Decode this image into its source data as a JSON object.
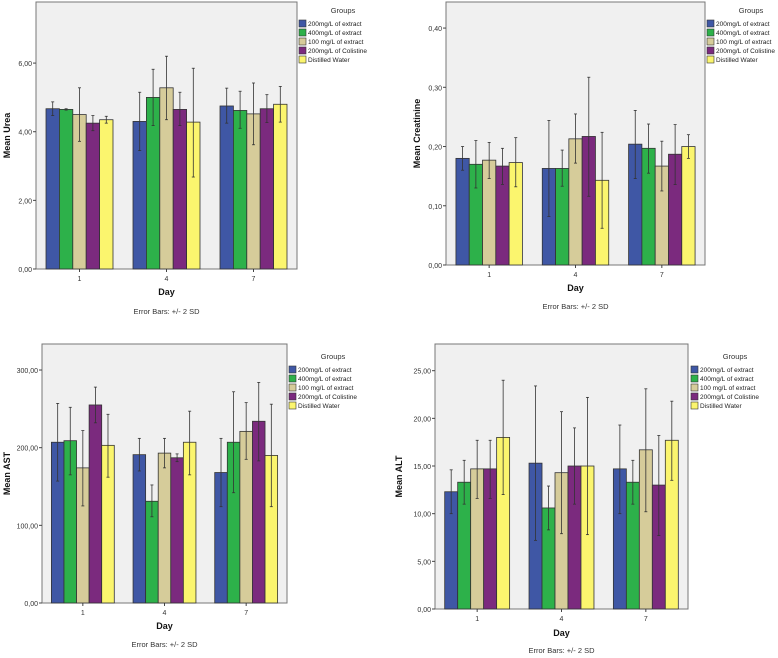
{
  "chart_data": [
    {
      "type": "bar",
      "title": "",
      "xlabel": "Day",
      "ylabel": "Mean Urea",
      "footnote": "Error Bars: +/- 2 SD",
      "legend_title": "Groups",
      "legend_position": "right",
      "categories": [
        "1",
        "4",
        "7"
      ],
      "ylim": [
        0,
        7.78
      ],
      "yticks": [
        0,
        2,
        4,
        6
      ],
      "ytick_labels": [
        "0,00",
        "2,00",
        "4,00",
        "6,00"
      ],
      "series": [
        {
          "name": "200mg/L of extract",
          "color": "#3f57a5",
          "values": [
            4.67,
            4.3,
            4.75
          ],
          "err_low": [
            4.47,
            3.45,
            4.25
          ],
          "err_high": [
            4.87,
            5.15,
            5.27
          ]
        },
        {
          "name": "400mg/L of extract",
          "color": "#2db14a",
          "values": [
            4.65,
            5.0,
            4.62
          ],
          "err_low": [
            4.63,
            4.18,
            4.1
          ],
          "err_high": [
            4.67,
            5.82,
            5.18
          ]
        },
        {
          "name": "100 mg/L of extract",
          "color": "#d6cc9a",
          "values": [
            4.5,
            5.28,
            4.52
          ],
          "err_low": [
            3.72,
            4.35,
            3.62
          ],
          "err_high": [
            5.28,
            6.2,
            5.42
          ]
        },
        {
          "name": "200mg/L of Colistine",
          "color": "#7b2a7e",
          "values": [
            4.25,
            4.65,
            4.67
          ],
          "err_low": [
            4.03,
            4.18,
            4.27
          ],
          "err_high": [
            4.47,
            5.15,
            5.08
          ]
        },
        {
          "name": "Distilled Water",
          "color": "#fbf56e",
          "values": [
            4.35,
            4.28,
            4.8
          ],
          "err_low": [
            4.25,
            2.68,
            4.28
          ],
          "err_high": [
            4.45,
            5.85,
            5.32
          ]
        }
      ]
    },
    {
      "type": "bar",
      "title": "",
      "xlabel": "Day",
      "ylabel": "Mean Creatinine",
      "footnote": "Error Bars: +/- 2 SD",
      "legend_title": "Groups",
      "legend_position": "right",
      "categories": [
        "1",
        "4",
        "7"
      ],
      "ylim": [
        0,
        0.444
      ],
      "yticks": [
        0,
        0.1,
        0.2,
        0.3,
        0.4
      ],
      "ytick_labels": [
        "0,00",
        "0,10",
        "0,20",
        "0,30",
        "0,40"
      ],
      "series": [
        {
          "name": "200mg/L of extract",
          "color": "#3f57a5",
          "values": [
            0.18,
            0.163,
            0.204
          ],
          "err_low": [
            0.16,
            0.082,
            0.146
          ],
          "err_high": [
            0.2,
            0.244,
            0.261
          ]
        },
        {
          "name": "400mg/L of extract",
          "color": "#2db14a",
          "values": [
            0.17,
            0.163,
            0.197
          ],
          "err_low": [
            0.13,
            0.133,
            0.155
          ],
          "err_high": [
            0.21,
            0.194,
            0.238
          ]
        },
        {
          "name": "100 mg/L of extract",
          "color": "#d6cc9a",
          "values": [
            0.177,
            0.213,
            0.167
          ],
          "err_low": [
            0.146,
            0.172,
            0.125
          ],
          "err_high": [
            0.207,
            0.255,
            0.209
          ]
        },
        {
          "name": "200mg/L of Colistine",
          "color": "#7b2a7e",
          "values": [
            0.167,
            0.217,
            0.187
          ],
          "err_low": [
            0.136,
            0.116,
            0.136
          ],
          "err_high": [
            0.197,
            0.317,
            0.237
          ]
        },
        {
          "name": "Distilled Water",
          "color": "#fbf56e",
          "values": [
            0.173,
            0.143,
            0.2
          ],
          "err_low": [
            0.132,
            0.062,
            0.18
          ],
          "err_high": [
            0.215,
            0.224,
            0.22
          ]
        }
      ]
    },
    {
      "type": "bar",
      "title": "",
      "xlabel": "Day",
      "ylabel": "Mean AST",
      "footnote": "Error Bars: +/- 2 SD",
      "legend_title": "Groups",
      "legend_position": "right",
      "categories": [
        "1",
        "4",
        "7"
      ],
      "ylim": [
        0,
        333.5
      ],
      "yticks": [
        0,
        100,
        200,
        300
      ],
      "ytick_labels": [
        "0,00",
        "100,00",
        "200,00",
        "300,00"
      ],
      "series": [
        {
          "name": "200mg/L of extract",
          "color": "#3f57a5",
          "values": [
            207,
            191,
            168
          ],
          "err_low": [
            157,
            170,
            124
          ],
          "err_high": [
            257,
            212,
            212
          ]
        },
        {
          "name": "400mg/L of extract",
          "color": "#2db14a",
          "values": [
            209,
            131,
            207
          ],
          "err_low": [
            165,
            111,
            142
          ],
          "err_high": [
            252,
            152,
            272
          ]
        },
        {
          "name": "100 mg/L of extract",
          "color": "#d6cc9a",
          "values": [
            174,
            193,
            221
          ],
          "err_low": [
            125,
            174,
            185
          ],
          "err_high": [
            222,
            212,
            258
          ]
        },
        {
          "name": "200mg/L of Colistine",
          "color": "#7b2a7e",
          "values": [
            255,
            187,
            234
          ],
          "err_low": [
            232,
            182,
            183
          ],
          "err_high": [
            278,
            192,
            284
          ]
        },
        {
          "name": "Distilled Water",
          "color": "#fbf56e",
          "values": [
            203,
            207,
            190
          ],
          "err_low": [
            162,
            165,
            124
          ],
          "err_high": [
            243,
            247,
            256
          ]
        }
      ]
    },
    {
      "type": "bar",
      "title": "",
      "xlabel": "Day",
      "ylabel": "Mean ALT",
      "footnote": "Error Bars: +/- 2 SD",
      "legend_title": "Groups",
      "legend_position": "right",
      "categories": [
        "1",
        "4",
        "7"
      ],
      "ylim": [
        0,
        27.8
      ],
      "yticks": [
        0,
        5,
        10,
        15,
        20,
        25
      ],
      "ytick_labels": [
        "0,00",
        "5,00",
        "10,00",
        "15,00",
        "20,00",
        "25,00"
      ],
      "series": [
        {
          "name": "200mg/L of extract",
          "color": "#3f57a5",
          "values": [
            12.3,
            15.3,
            14.7
          ],
          "err_low": [
            10,
            7.2,
            10
          ],
          "err_high": [
            14.6,
            23.4,
            19.3
          ]
        },
        {
          "name": "400mg/L of extract",
          "color": "#2db14a",
          "values": [
            13.3,
            10.6,
            13.3
          ],
          "err_low": [
            11,
            8.3,
            11
          ],
          "err_high": [
            15.6,
            12.9,
            15.6
          ]
        },
        {
          "name": "100 mg/L of extract",
          "color": "#d6cc9a",
          "values": [
            14.7,
            14.3,
            16.7
          ],
          "err_low": [
            11.6,
            7.9,
            10.2
          ],
          "err_high": [
            17.7,
            20.7,
            23.1
          ]
        },
        {
          "name": "200mg/L of Colistine",
          "color": "#7b2a7e",
          "values": [
            14.7,
            15,
            13
          ],
          "err_low": [
            11.6,
            11,
            7.7
          ],
          "err_high": [
            17.7,
            19,
            18.2
          ]
        },
        {
          "name": "Distilled Water",
          "color": "#fbf56e",
          "values": [
            18,
            15,
            17.7
          ],
          "err_low": [
            12,
            7.8,
            13.5
          ],
          "err_high": [
            24,
            22.2,
            21.8
          ]
        }
      ]
    }
  ]
}
